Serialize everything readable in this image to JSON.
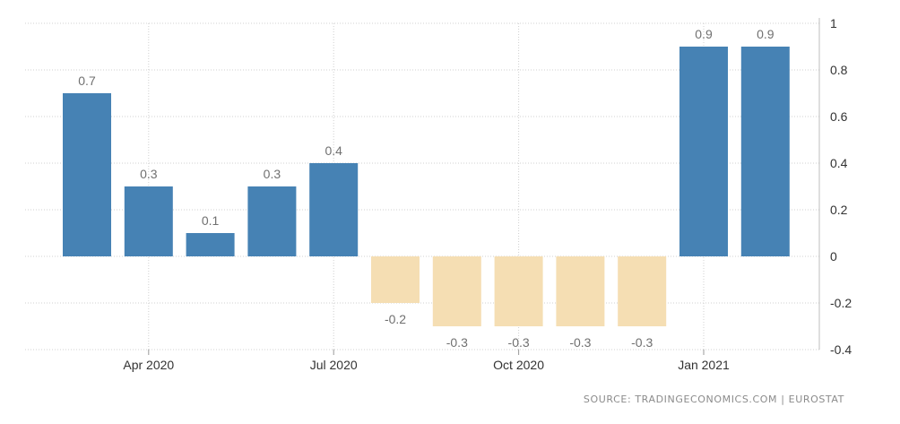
{
  "chart_data": {
    "type": "bar",
    "categories": [
      "Mar 2020",
      "Apr 2020",
      "May 2020",
      "Jun 2020",
      "Jul 2020",
      "Aug 2020",
      "Sep 2020",
      "Oct 2020",
      "Nov 2020",
      "Dec 2020",
      "Jan 2021",
      "Feb 2021"
    ],
    "values": [
      0.7,
      0.3,
      0.1,
      0.3,
      0.4,
      -0.2,
      -0.3,
      -0.3,
      -0.3,
      -0.3,
      0.9,
      0.9
    ],
    "value_labels": [
      "0.7",
      "0.3",
      "0.1",
      "0.3",
      "0.4",
      "-0.2",
      "-0.3",
      "-0.3",
      "-0.3",
      "-0.3",
      "0.9",
      "0.9"
    ],
    "xticks": [
      "Apr 2020",
      "Jul 2020",
      "Oct 2020",
      "Jan 2021"
    ],
    "yticks": [
      "1",
      "0.8",
      "0.6",
      "0.4",
      "0.2",
      "0",
      "-0.2",
      "-0.4"
    ],
    "ylim": [
      -0.4,
      1
    ],
    "grid": true,
    "yaxis_side": "right",
    "colors": {
      "positive": "#4682b4",
      "negative": "#f5deb3",
      "label": "#707070",
      "grid": "#d0d0d0"
    }
  },
  "source": "SOURCE: TRADINGECONOMICS.COM | EUROSTAT"
}
